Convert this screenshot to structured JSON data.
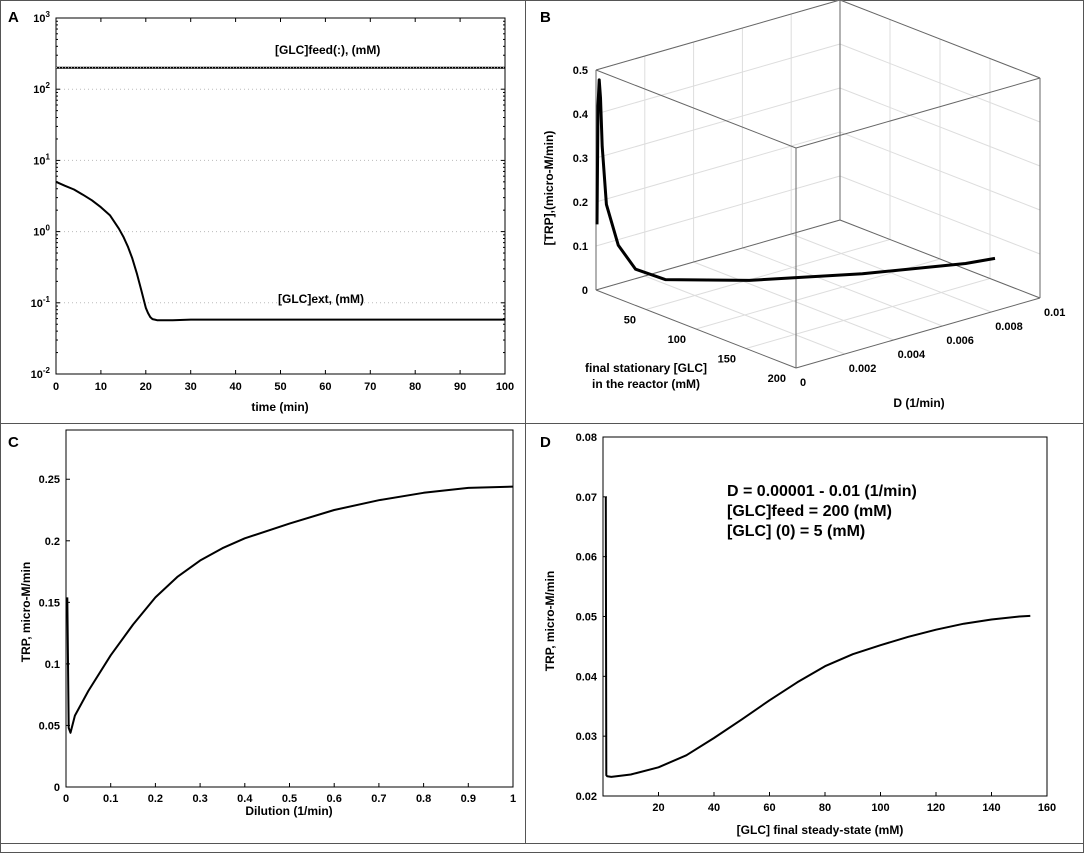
{
  "chart_data": [
    {
      "panel": "A",
      "type": "line",
      "yscale": "log",
      "xlabel": "time (min)",
      "ylabel": "",
      "xlim": [
        0,
        100
      ],
      "ylim_exp": [
        -2,
        3
      ],
      "x_ticks": [
        0,
        10,
        20,
        30,
        40,
        50,
        60,
        70,
        80,
        90,
        100
      ],
      "y_ticks": [
        {
          "base": "10",
          "exp": "-2"
        },
        {
          "base": "10",
          "exp": "-1"
        },
        {
          "base": "10",
          "exp": "0"
        },
        {
          "base": "10",
          "exp": "1"
        },
        {
          "base": "10",
          "exp": "2"
        },
        {
          "base": "10",
          "exp": "3"
        }
      ],
      "series": [
        {
          "name": "[GLC]feed(:), (mM)",
          "x": [
            0,
            100
          ],
          "y": [
            200,
            200
          ]
        },
        {
          "name": "[GLC]ext, (mM)",
          "x": [
            0,
            2,
            4,
            6,
            8,
            10,
            12,
            14,
            15,
            16,
            17,
            18,
            19,
            20,
            20.5,
            21,
            21.5,
            22,
            22.5,
            23,
            24,
            26,
            30,
            40,
            60,
            80,
            100
          ],
          "y": [
            5,
            4.4,
            3.9,
            3.3,
            2.75,
            2.2,
            1.7,
            1.1,
            0.85,
            0.62,
            0.42,
            0.26,
            0.15,
            0.085,
            0.072,
            0.063,
            0.059,
            0.058,
            0.057,
            0.057,
            0.057,
            0.057,
            0.058,
            0.058,
            0.058,
            0.058,
            0.058
          ]
        }
      ],
      "annotations": [
        "[GLC]feed(:), (mM)",
        "[GLC]ext, (mM)"
      ]
    },
    {
      "panel": "B",
      "type": "line3d",
      "xlabel_lines": [
        "final stationary [GLC]",
        "in the reactor (mM)"
      ],
      "ylabel": "D (1/min)",
      "zlabel": "[TRP],(micro-M/min)",
      "xlim": [
        0,
        200
      ],
      "ylim": [
        0,
        0.01
      ],
      "zlim": [
        0,
        0.5
      ],
      "x_ticks": [
        "50",
        "100",
        "150",
        "200"
      ],
      "y_ticks": [
        "0",
        "0.002",
        "0.004",
        "0.006",
        "0.008",
        "0.01"
      ],
      "z_ticks": [
        "0",
        "0.1",
        "0.2",
        "0.3",
        "0.4",
        "0.5"
      ],
      "series": [
        {
          "name": "TRP",
          "glc": [
            1,
            2,
            3,
            4,
            5,
            8,
            15,
            25,
            40,
            80,
            120,
            150,
            155
          ],
          "d": [
            0,
            0,
            1e-05,
            2e-05,
            5e-05,
            0.0001,
            0.0003,
            0.0006,
            0.0012,
            0.003,
            0.006,
            0.009,
            0.01
          ],
          "trp": [
            0.15,
            0.42,
            0.48,
            0.44,
            0.33,
            0.2,
            0.11,
            0.06,
            0.04,
            0.045,
            0.048,
            0.05,
            0.05
          ]
        }
      ]
    },
    {
      "panel": "C",
      "type": "line",
      "xlabel": "Dilution (1/min)",
      "ylabel": "TRP, micro-M/min",
      "xlim": [
        0,
        1
      ],
      "ylim": [
        0,
        0.29
      ],
      "x_ticks": [
        "0",
        "0.1",
        "0.2",
        "0.3",
        "0.4",
        "0.5",
        "0.6",
        "0.7",
        "0.8",
        "0.9",
        "1"
      ],
      "y_ticks": [
        "0",
        "0.05",
        "0.1",
        "0.15",
        "0.2",
        "0.25"
      ],
      "series": [
        {
          "name": "TRP",
          "x": [
            0.003,
            0.006,
            0.01,
            0.02,
            0.05,
            0.1,
            0.15,
            0.2,
            0.25,
            0.3,
            0.35,
            0.4,
            0.5,
            0.6,
            0.7,
            0.8,
            0.9,
            1.0
          ],
          "y": [
            0.154,
            0.048,
            0.044,
            0.058,
            0.078,
            0.107,
            0.132,
            0.154,
            0.171,
            0.184,
            0.194,
            0.202,
            0.214,
            0.225,
            0.233,
            0.239,
            0.243,
            0.244
          ]
        }
      ]
    },
    {
      "panel": "D",
      "type": "line",
      "xlabel": "[GLC] final steady-state (mM)",
      "ylabel": "TRP, micro-M/min",
      "xlim": [
        0,
        160
      ],
      "ylim": [
        0.02,
        0.08
      ],
      "x_ticks": [
        "20",
        "40",
        "60",
        "80",
        "100",
        "120",
        "140",
        "160"
      ],
      "y_ticks": [
        "0.02",
        "0.03",
        "0.04",
        "0.05",
        "0.06",
        "0.07",
        "0.08"
      ],
      "annotations": [
        "D = 0.00001 - 0.01 (1/min)",
        "[GLC]feed = 200 (mM)",
        "[GLC] (0) = 5 (mM)"
      ],
      "series": [
        {
          "name": "TRP",
          "x": [
            1,
            1.2,
            1.5,
            3,
            10,
            20,
            30,
            40,
            50,
            60,
            70,
            80,
            90,
            100,
            110,
            120,
            130,
            140,
            150,
            154
          ],
          "y": [
            0.07,
            0.0235,
            0.0233,
            0.0232,
            0.0236,
            0.0248,
            0.0268,
            0.0297,
            0.0328,
            0.036,
            0.039,
            0.0417,
            0.0437,
            0.0452,
            0.0466,
            0.0478,
            0.0488,
            0.0495,
            0.05,
            0.0501
          ]
        }
      ]
    }
  ],
  "panel_labels": [
    "A",
    "B",
    "C",
    "D"
  ]
}
